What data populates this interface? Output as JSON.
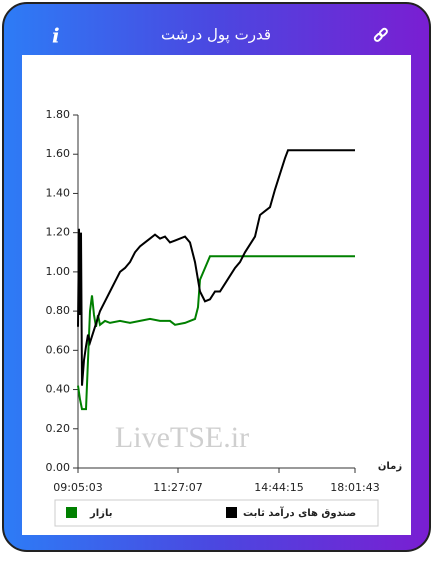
{
  "header": {
    "title": "قدرت پول درشت"
  },
  "chart_data": {
    "type": "line",
    "x_label": "زمان",
    "watermark": "LiveTSE.ir",
    "xlim": [
      0,
      277
    ],
    "xticks": [
      {
        "value": 0,
        "label": "09:05:03"
      },
      {
        "value": 100,
        "label": "11:27:07"
      },
      {
        "value": 201,
        "label": "14:44:15"
      },
      {
        "value": 277,
        "label": "18:01:43"
      }
    ],
    "ylim": [
      0,
      1.8
    ],
    "yticks": [
      {
        "value": 0,
        "label": "0.00"
      },
      {
        "value": 0.2,
        "label": "0.20"
      },
      {
        "value": 0.4,
        "label": "0.40"
      },
      {
        "value": 0.6,
        "label": "0.60"
      },
      {
        "value": 0.8,
        "label": "0.80"
      },
      {
        "value": 1,
        "label": "1.00"
      },
      {
        "value": 1.2,
        "label": "1.20"
      },
      {
        "value": 1.4,
        "label": "1.40"
      },
      {
        "value": 1.6,
        "label": "1.60"
      },
      {
        "value": 1.8,
        "label": "1.80"
      }
    ],
    "grid": false,
    "series": [
      {
        "name": "بازار",
        "color": "#008000",
        "x": [
          0,
          2,
          4,
          8,
          10,
          12,
          14,
          16,
          18,
          20,
          22,
          27,
          32,
          42,
          52,
          62,
          72,
          82,
          92,
          97,
          107,
          117,
          120,
          122,
          127,
          132,
          152,
          182,
          222,
          277
        ],
        "values": [
          0.42,
          0.35,
          0.3,
          0.3,
          0.55,
          0.8,
          0.88,
          0.78,
          0.72,
          0.78,
          0.73,
          0.75,
          0.74,
          0.75,
          0.74,
          0.75,
          0.76,
          0.75,
          0.75,
          0.73,
          0.74,
          0.76,
          0.82,
          0.96,
          1.02,
          1.08,
          1.08,
          1.08,
          1.08,
          1.08
        ]
      },
      {
        "name": "صندوق های درآمد ثابت",
        "color": "#000000",
        "x": [
          0,
          1,
          2,
          3,
          4,
          6,
          8,
          10,
          12,
          17,
          22,
          27,
          32,
          37,
          42,
          47,
          52,
          57,
          62,
          67,
          72,
          77,
          82,
          87,
          92,
          97,
          102,
          107,
          112,
          117,
          122,
          127,
          132,
          137,
          142,
          147,
          152,
          157,
          162,
          167,
          172,
          177,
          182,
          187,
          192,
          197,
          202,
          207,
          210,
          222,
          277
        ],
        "values": [
          0.72,
          1.22,
          0.78,
          1.2,
          0.42,
          0.55,
          0.62,
          0.68,
          0.64,
          0.72,
          0.8,
          0.85,
          0.9,
          0.95,
          1.0,
          1.02,
          1.05,
          1.1,
          1.13,
          1.15,
          1.17,
          1.19,
          1.17,
          1.18,
          1.15,
          1.16,
          1.17,
          1.18,
          1.15,
          1.05,
          0.9,
          0.85,
          0.86,
          0.9,
          0.9,
          0.94,
          0.98,
          1.02,
          1.05,
          1.1,
          1.14,
          1.18,
          1.29,
          1.31,
          1.33,
          1.42,
          1.5,
          1.58,
          1.62,
          1.62,
          1.62
        ]
      }
    ]
  }
}
